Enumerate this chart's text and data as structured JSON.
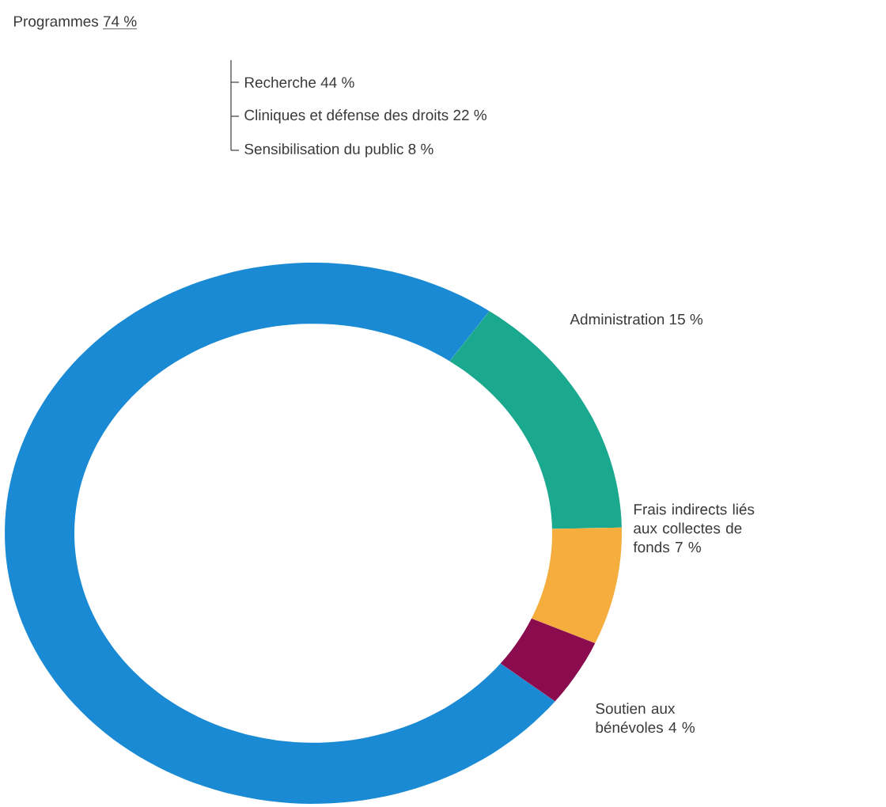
{
  "chart_data": {
    "type": "donut",
    "categories": [
      "Programmes",
      "Administration",
      "Frais indirects liés aux collectes de fonds",
      "Soutien aux bénévoles"
    ],
    "values": [
      74,
      15,
      7,
      4
    ],
    "value_labels": [
      "74 %",
      "15 %",
      "7 %",
      "4 %"
    ],
    "colors": [
      "#1a8ad4",
      "#1aa88e",
      "#f5ae3d",
      "#8a0c4f"
    ],
    "annotations": [
      "Recherche 44 %",
      "Cliniques et défense des droits 22 %",
      "Sensibilisation du public 8 %"
    ]
  }
}
